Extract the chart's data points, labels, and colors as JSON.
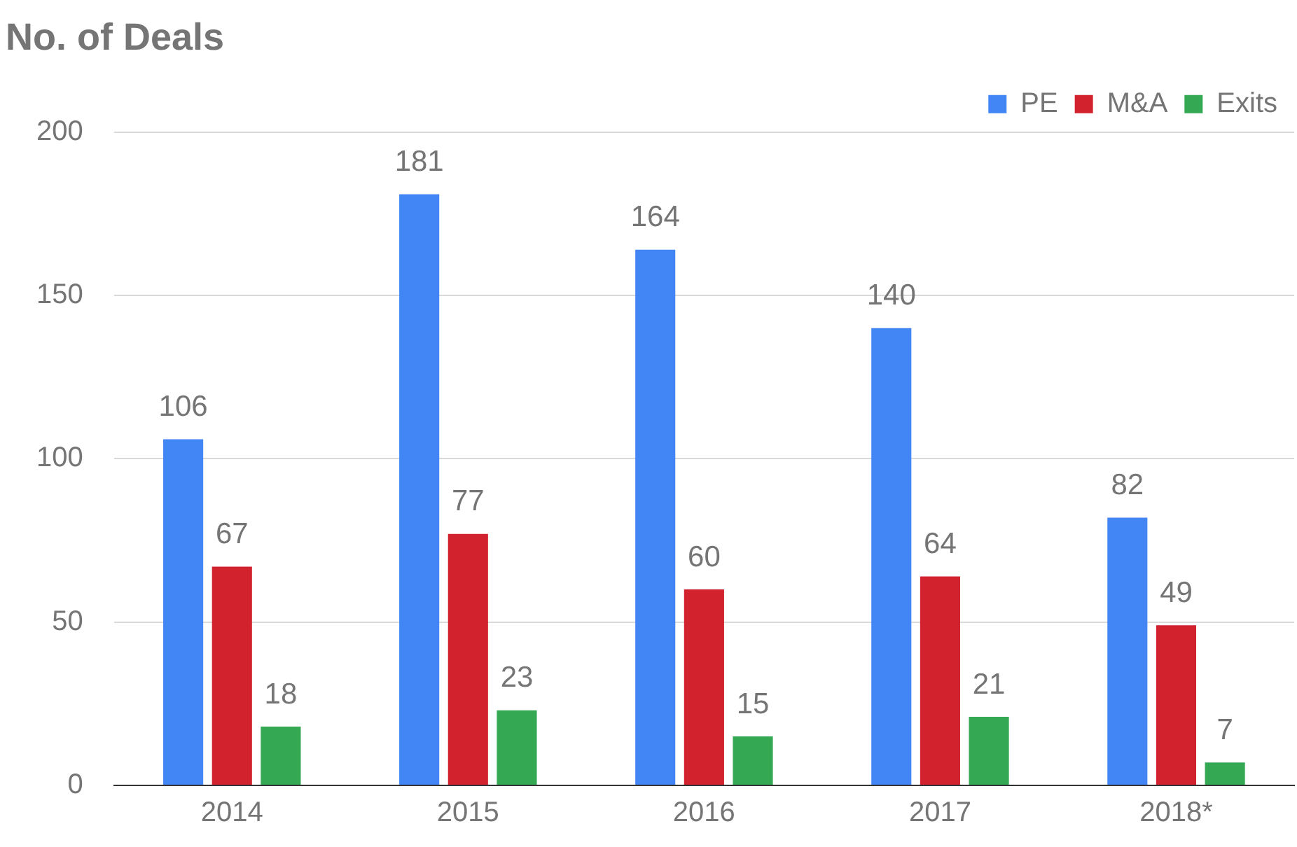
{
  "chart_data": {
    "type": "bar",
    "title": "No. of Deals",
    "categories": [
      "2014",
      "2015",
      "2016",
      "2017",
      "2018*"
    ],
    "series": [
      {
        "name": "PE",
        "color": "#4285f4",
        "values": [
          106,
          181,
          164,
          140,
          82
        ]
      },
      {
        "name": "M&A",
        "color": "#d2222d",
        "values": [
          67,
          77,
          60,
          64,
          49
        ]
      },
      {
        "name": "Exits",
        "color": "#34a853",
        "values": [
          18,
          23,
          15,
          21,
          7
        ]
      }
    ],
    "ylim": [
      0,
      200
    ],
    "yticks": [
      0,
      50,
      100,
      150,
      200
    ],
    "grid": "y",
    "legend": "top right",
    "data_labels": true
  }
}
